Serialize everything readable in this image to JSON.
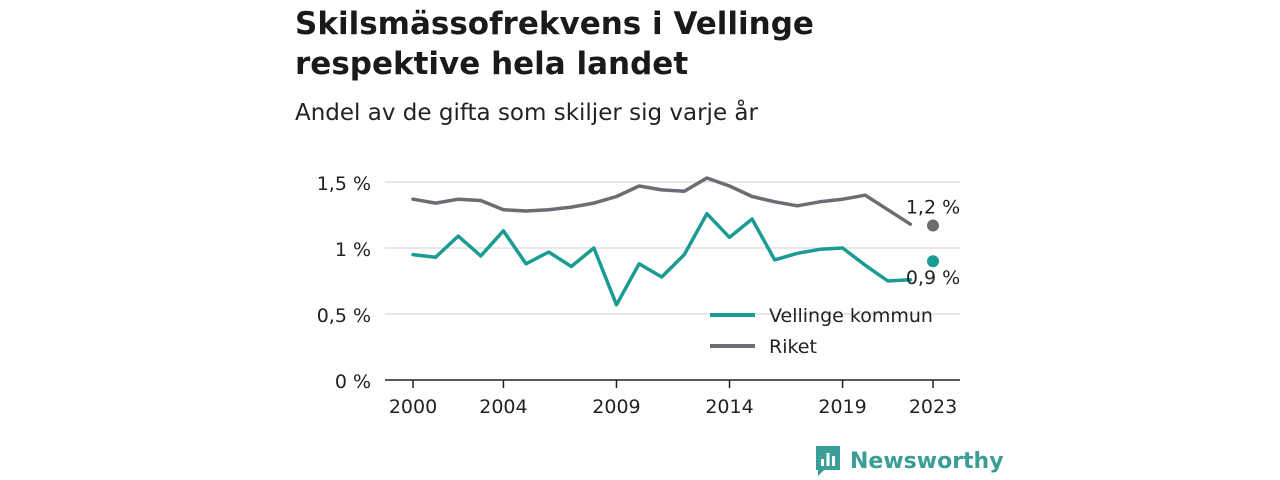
{
  "title_line1": "Skilsmässofrekvens i Vellinge",
  "title_line2": "respektive hela landet",
  "subtitle": "Andel av de gifta som skiljer sig varje år",
  "brand": {
    "name": "Newsworthy",
    "logo_icon": "newsworthy-bar-chart-icon",
    "color": "#3a9e97"
  },
  "chart_data": {
    "type": "line",
    "x": [
      2000,
      2001,
      2002,
      2003,
      2004,
      2005,
      2006,
      2007,
      2008,
      2009,
      2010,
      2011,
      2012,
      2013,
      2014,
      2015,
      2016,
      2017,
      2018,
      2019,
      2020,
      2021,
      2022,
      2023
    ],
    "series": [
      {
        "name": "Vellinge kommun",
        "color": "#1a9c94",
        "values": [
          0.95,
          0.93,
          1.09,
          0.94,
          1.13,
          0.88,
          0.97,
          0.86,
          1.0,
          0.57,
          0.88,
          0.78,
          0.95,
          1.26,
          1.08,
          1.22,
          0.91,
          0.96,
          0.99,
          1.0,
          0.87,
          0.75,
          0.76,
          0.9
        ],
        "end_label": "0,9 %"
      },
      {
        "name": "Riket",
        "color": "#6d6c73",
        "values": [
          1.37,
          1.34,
          1.37,
          1.36,
          1.29,
          1.28,
          1.29,
          1.31,
          1.34,
          1.39,
          1.47,
          1.44,
          1.43,
          1.53,
          1.47,
          1.39,
          1.35,
          1.32,
          1.35,
          1.37,
          1.4,
          1.29,
          1.18,
          1.17
        ],
        "end_label": "1,2 %"
      }
    ],
    "yticks": [
      0,
      0.5,
      1,
      1.5
    ],
    "ytick_labels": [
      "0 %",
      "0,5 %",
      "1 %",
      "1,5 %"
    ],
    "xticks": [
      2000,
      2004,
      2009,
      2014,
      2019,
      2023
    ],
    "xtick_labels": [
      "2000",
      "2004",
      "2009",
      "2014",
      "2019",
      "2023"
    ],
    "ylim": [
      0,
      1.5
    ],
    "xlim": [
      2000,
      2023
    ],
    "grid": true,
    "legend_position": "bottom-right",
    "gap_before_last_point": true
  }
}
